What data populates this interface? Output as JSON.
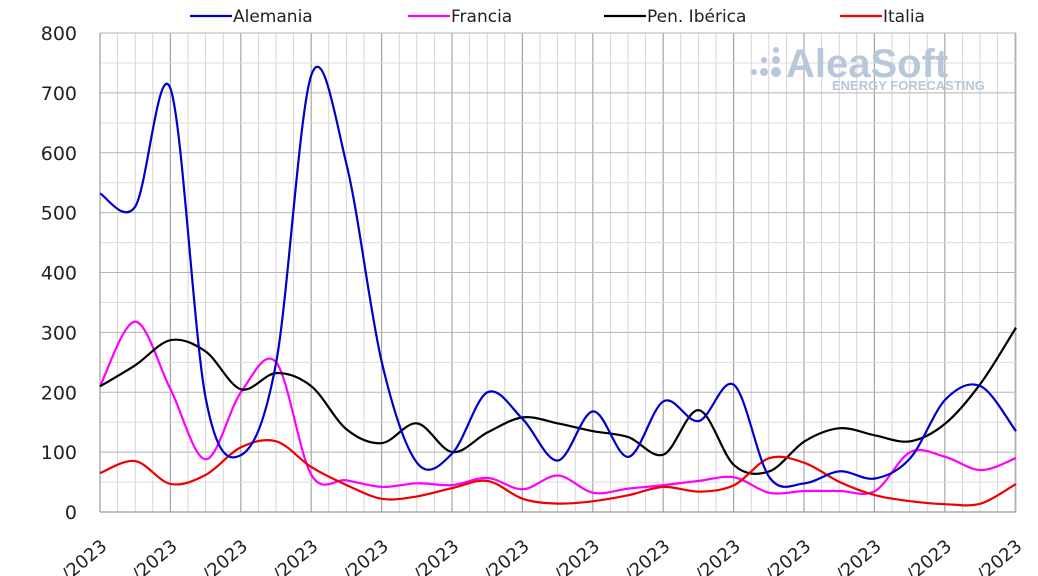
{
  "chart_data": {
    "type": "line",
    "title": "",
    "xlabel": "",
    "ylabel": "",
    "ylim": [
      0,
      800
    ],
    "yticks": [
      0,
      100,
      200,
      300,
      400,
      500,
      600,
      700,
      800
    ],
    "x_tick_labels": [
      "/2023",
      "/2023",
      "/2023",
      "/2023",
      "/2023",
      "/2023",
      "/2023",
      "/2023",
      "/2023",
      "/2023",
      "/2023",
      "/2023",
      "/2023",
      "/2023"
    ],
    "grid": true,
    "legend_position": "top",
    "x": [
      0,
      0.5,
      1,
      1.5,
      2,
      2.5,
      3,
      3.5,
      4,
      4.5,
      5,
      5.5,
      6,
      6.5,
      7,
      7.5,
      8,
      8.5,
      9,
      9.5,
      10,
      10.5,
      11,
      11.5,
      12,
      12.5,
      13
    ],
    "series": [
      {
        "name": "Alemania",
        "color": "#0000cc",
        "values": [
          532,
          510,
          707,
          190,
          95,
          250,
          730,
          580,
          250,
          82,
          98,
          200,
          155,
          86,
          168,
          92,
          185,
          152,
          212,
          58,
          48,
          68,
          56,
          90,
          188,
          210,
          135
        ]
      },
      {
        "name": "Francia",
        "color": "#ff00ff",
        "values": [
          210,
          318,
          205,
          88,
          200,
          250,
          62,
          53,
          42,
          48,
          45,
          57,
          38,
          61,
          32,
          39,
          45,
          52,
          58,
          32,
          35,
          35,
          35,
          100,
          92,
          70,
          90
        ]
      },
      {
        "name": "Pen. Ibérica",
        "color": "#000000",
        "values": [
          210,
          245,
          287,
          268,
          205,
          232,
          210,
          138,
          115,
          148,
          100,
          133,
          158,
          148,
          135,
          125,
          96,
          170,
          78,
          68,
          118,
          140,
          128,
          118,
          148,
          215,
          308
        ]
      },
      {
        "name": "Italia",
        "color": "#ee0000",
        "values": [
          65,
          85,
          47,
          62,
          108,
          118,
          75,
          45,
          22,
          26,
          40,
          52,
          22,
          14,
          18,
          28,
          42,
          34,
          45,
          90,
          82,
          50,
          28,
          18,
          13,
          14,
          47
        ]
      }
    ]
  },
  "watermark": {
    "brand": "AleaSoft",
    "tagline": "ENERGY FORECASTING"
  }
}
